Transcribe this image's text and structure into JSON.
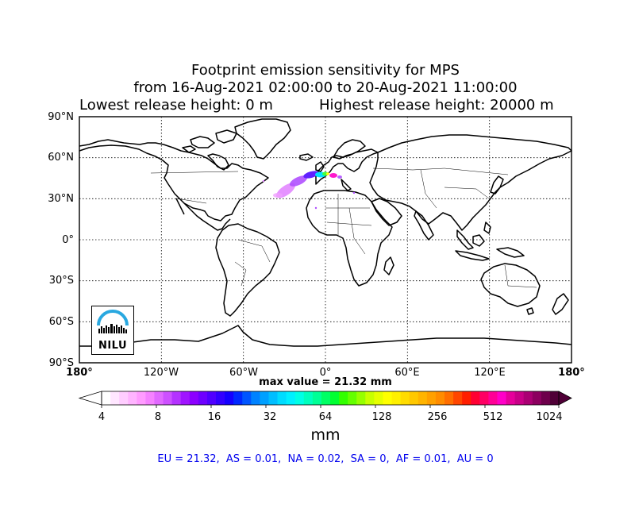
{
  "title": {
    "line1": "Footprint emission sensitivity for MPS",
    "line2": "from 16-Aug-2021 02:00:00 to 20-Aug-2021 11:00:00",
    "lowest_release": "Lowest release height: 0 m",
    "highest_release": "Highest release height: 20000 m"
  },
  "axes": {
    "lat_labels": [
      "90°N",
      "60°N",
      "30°N",
      "0°",
      "30°S",
      "60°S",
      "90°S"
    ],
    "lon_labels": [
      "180°",
      "120°W",
      "60°W",
      "0°",
      "60°E",
      "120°E",
      "180°"
    ]
  },
  "max_value": "max value = 21.32 mm",
  "colorbar": {
    "tick_labels": [
      "4",
      "8",
      "16",
      "32",
      "64",
      "128",
      "256",
      "512",
      "1024"
    ],
    "unit": "mm",
    "colors": [
      "#ffffff",
      "#ffe6ff",
      "#ffcdff",
      "#ffb4ff",
      "#ff9bff",
      "#f582ff",
      "#e169ff",
      "#cd50ff",
      "#b432ff",
      "#a014ff",
      "#8c00ff",
      "#6e00ff",
      "#5000ff",
      "#3200ff",
      "#1400ff",
      "#0028ff",
      "#0055ff",
      "#0082ff",
      "#00a0ff",
      "#00beff",
      "#00dcff",
      "#00f0ff",
      "#00ffe6",
      "#00ffbe",
      "#00ff96",
      "#00ff64",
      "#00ff32",
      "#32ff00",
      "#64ff00",
      "#96ff00",
      "#c8ff00",
      "#e6ff00",
      "#ffff00",
      "#fff000",
      "#ffdc00",
      "#ffc800",
      "#ffb400",
      "#ffa000",
      "#ff8c00",
      "#ff6e00",
      "#ff4600",
      "#ff1e00",
      "#ff0032",
      "#ff0064",
      "#ff0096",
      "#ff00c8",
      "#e6009b",
      "#c80087",
      "#aa0073",
      "#8c005f",
      "#6e004b",
      "#500037"
    ]
  },
  "regions_summary": "EU = 21.32,  AS = 0.01,  NA = 0.02,  SA = 0,  AF = 0.01,  AU = 0",
  "logo": {
    "text": "NILU"
  },
  "plume_colors": {
    "low": "#e080ff",
    "mid": "#b050ff",
    "high": "#6020ff",
    "cyan": "#00e0ff",
    "green": "#40ff40",
    "yellow": "#ffff00",
    "magenta": "#ff00c8"
  }
}
